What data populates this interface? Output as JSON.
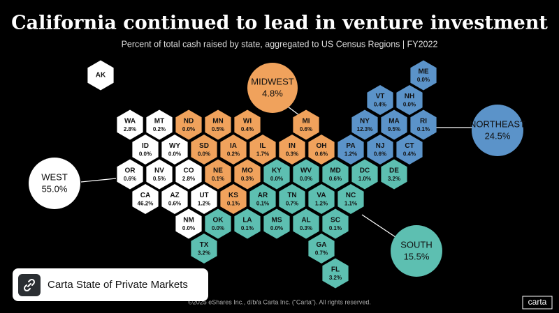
{
  "title": "California continued to lead in venture investment",
  "subtitle": "Percent of total cash raised by state, aggregated to US Census Regions  |  FY2022",
  "regions": [
    {
      "name": "WEST",
      "share": "55.0%",
      "color": "#ffffff",
      "text_color": "#111111",
      "states": [
        {
          "abbr": "WA",
          "share": "2.8%"
        },
        {
          "abbr": "MT",
          "share": "0.2%"
        },
        {
          "abbr": "ID",
          "share": "0.0%"
        },
        {
          "abbr": "WY",
          "share": "0.0%"
        },
        {
          "abbr": "OR",
          "share": "0.6%"
        },
        {
          "abbr": "NV",
          "share": "0.5%"
        },
        {
          "abbr": "CO",
          "share": "2.8%"
        },
        {
          "abbr": "CA",
          "share": "46.2%"
        },
        {
          "abbr": "AZ",
          "share": "0.6%"
        },
        {
          "abbr": "UT",
          "share": "1.2%"
        },
        {
          "abbr": "NM",
          "share": "0.0%"
        },
        {
          "abbr": "AK"
        }
      ]
    },
    {
      "name": "MIDWEST",
      "share": "4.8%",
      "color": "#f0a25c",
      "text_color": "#111111",
      "states": [
        {
          "abbr": "ND",
          "share": "0.0%"
        },
        {
          "abbr": "MN",
          "share": "0.5%"
        },
        {
          "abbr": "WI",
          "share": "0.4%"
        },
        {
          "abbr": "MI",
          "share": "0.6%"
        },
        {
          "abbr": "SD",
          "share": "0.0%"
        },
        {
          "abbr": "IA",
          "share": "0.2%"
        },
        {
          "abbr": "IL",
          "share": "1.7%"
        },
        {
          "abbr": "IN",
          "share": "0.3%"
        },
        {
          "abbr": "OH",
          "share": "0.6%"
        },
        {
          "abbr": "NE",
          "share": "0.1%"
        },
        {
          "abbr": "MO",
          "share": "0.3%"
        },
        {
          "abbr": "KS",
          "share": "0.1%"
        }
      ]
    },
    {
      "name": "NORTHEAST",
      "share": "24.5%",
      "color": "#5b93c9",
      "text_color": "#111111",
      "states": [
        {
          "abbr": "ME",
          "share": "0.0%"
        },
        {
          "abbr": "VT",
          "share": "0.4%"
        },
        {
          "abbr": "NH",
          "share": "0.0%"
        },
        {
          "abbr": "NY",
          "share": "12.3%"
        },
        {
          "abbr": "MA",
          "share": "9.5%"
        },
        {
          "abbr": "RI",
          "share": "0.1%"
        },
        {
          "abbr": "PA",
          "share": "1.2%"
        },
        {
          "abbr": "NJ",
          "share": "0.6%"
        },
        {
          "abbr": "CT",
          "share": "0.4%"
        }
      ]
    },
    {
      "name": "SOUTH",
      "share": "15.5%",
      "color": "#5dbfb1",
      "text_color": "#111111",
      "states": [
        {
          "abbr": "KY",
          "share": "0.0%"
        },
        {
          "abbr": "WV",
          "share": "0.0%"
        },
        {
          "abbr": "MD",
          "share": "0.6%"
        },
        {
          "abbr": "DC",
          "share": "1.0%"
        },
        {
          "abbr": "DE",
          "share": "3.2%"
        },
        {
          "abbr": "AR",
          "share": "0.1%"
        },
        {
          "abbr": "TN",
          "share": "0.7%"
        },
        {
          "abbr": "VA",
          "share": "1.2%"
        },
        {
          "abbr": "NC",
          "share": "1.1%"
        },
        {
          "abbr": "OK",
          "share": "0.0%"
        },
        {
          "abbr": "LA",
          "share": "0.1%"
        },
        {
          "abbr": "MS",
          "share": "0.0%"
        },
        {
          "abbr": "AL",
          "share": "0.3%"
        },
        {
          "abbr": "SC",
          "share": "0.1%"
        },
        {
          "abbr": "TX",
          "share": "3.2%"
        },
        {
          "abbr": "GA",
          "share": "0.7%"
        },
        {
          "abbr": "FL",
          "share": "3.2%"
        }
      ]
    }
  ],
  "footer": "©2025 eShares Inc., d/b/a Carta Inc. (“Carta”). All rights reserved.",
  "logo": "carta",
  "link_card": "Carta State of Private Markets"
}
